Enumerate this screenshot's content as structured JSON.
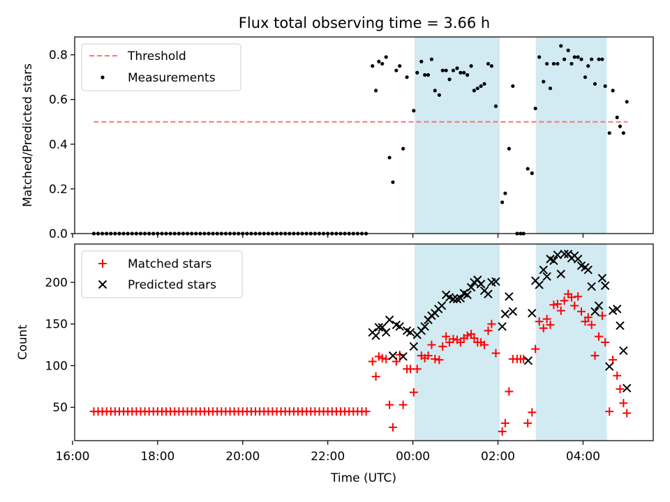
{
  "title": "Flux total observing time = 3.66 h",
  "colors": {
    "threshold": "#ff7070",
    "measurements": "#000000",
    "matched": "#ff0000",
    "predicted": "#000000",
    "shade": "#add8e6"
  },
  "chart_data": [
    {
      "type": "scatter",
      "ylabel": "Matched/Predicted stars",
      "xlim": [
        -7.95,
        5.65
      ],
      "ylim": [
        0,
        0.88
      ],
      "yticks": [
        0.0,
        0.2,
        0.4,
        0.6,
        0.8
      ],
      "ytick_labels": [
        "0.0",
        "0.2",
        "0.4",
        "0.6",
        "0.8"
      ],
      "shaded_x": [
        [
          0.04,
          2.04
        ],
        [
          2.89,
          4.56
        ]
      ],
      "legend": {
        "position": "top-left",
        "entries": [
          "Threshold",
          "Measurements"
        ]
      },
      "threshold": {
        "name": "Threshold",
        "value": 0.5,
        "x": [
          -7.5,
          5.05
        ]
      },
      "series": [
        {
          "name": "Measurements",
          "marker": "dot",
          "zeros_range": [
            -7.5,
            -1.05,
            0.1
          ],
          "points": [
            [
              -0.95,
              0.75
            ],
            [
              -0.87,
              0.64
            ],
            [
              -0.8,
              0.77
            ],
            [
              -0.72,
              0.76
            ],
            [
              -0.63,
              0.79
            ],
            [
              -0.55,
              0.34
            ],
            [
              -0.47,
              0.23
            ],
            [
              -0.39,
              0.73
            ],
            [
              -0.31,
              0.75
            ],
            [
              -0.23,
              0.38
            ],
            [
              -0.14,
              0.7
            ],
            [
              0.02,
              0.55
            ],
            [
              0.1,
              0.72
            ],
            [
              0.2,
              0.77
            ],
            [
              0.28,
              0.71
            ],
            [
              0.36,
              0.71
            ],
            [
              0.44,
              0.78
            ],
            [
              0.52,
              0.64
            ],
            [
              0.62,
              0.62
            ],
            [
              0.7,
              0.73
            ],
            [
              0.78,
              0.73
            ],
            [
              0.86,
              0.69
            ],
            [
              0.95,
              0.73
            ],
            [
              1.04,
              0.74
            ],
            [
              1.12,
              0.72
            ],
            [
              1.2,
              0.72
            ],
            [
              1.28,
              0.71
            ],
            [
              1.37,
              0.75
            ],
            [
              1.44,
              0.64
            ],
            [
              1.52,
              0.65
            ],
            [
              1.6,
              0.66
            ],
            [
              1.68,
              0.67
            ],
            [
              1.77,
              0.76
            ],
            [
              1.85,
              0.75
            ],
            [
              1.95,
              0.57
            ],
            [
              2.1,
              0.14
            ],
            [
              2.17,
              0.18
            ],
            [
              2.26,
              0.38
            ],
            [
              2.35,
              0.66
            ],
            [
              2.45,
              0.0
            ],
            [
              2.53,
              0.0
            ],
            [
              2.6,
              0.0
            ],
            [
              2.7,
              0.29
            ],
            [
              2.8,
              0.27
            ],
            [
              2.88,
              0.56
            ],
            [
              2.97,
              0.79
            ],
            [
              3.07,
              0.68
            ],
            [
              3.15,
              0.76
            ],
            [
              3.23,
              0.65
            ],
            [
              3.31,
              0.76
            ],
            [
              3.4,
              0.76
            ],
            [
              3.48,
              0.84
            ],
            [
              3.56,
              0.78
            ],
            [
              3.65,
              0.82
            ],
            [
              3.73,
              0.76
            ],
            [
              3.8,
              0.79
            ],
            [
              3.88,
              0.79
            ],
            [
              3.96,
              0.78
            ],
            [
              4.05,
              0.7
            ],
            [
              4.12,
              0.75
            ],
            [
              4.2,
              0.78
            ],
            [
              4.28,
              0.67
            ],
            [
              4.37,
              0.78
            ],
            [
              4.45,
              0.78
            ],
            [
              4.52,
              0.66
            ],
            [
              4.62,
              0.45
            ],
            [
              4.7,
              0.64
            ],
            [
              4.8,
              0.52
            ],
            [
              4.87,
              0.48
            ],
            [
              4.95,
              0.45
            ],
            [
              5.03,
              0.59
            ]
          ]
        }
      ]
    },
    {
      "type": "scatter",
      "xlabel": "Time (UTC)",
      "ylabel": "Count",
      "xlim": [
        -7.95,
        5.65
      ],
      "ylim": [
        10,
        246
      ],
      "xticks": [
        -8,
        -6,
        -4,
        -2,
        0,
        2,
        4
      ],
      "xtick_labels": [
        "16:00",
        "18:00",
        "20:00",
        "22:00",
        "00:00",
        "02:00",
        "04:00"
      ],
      "yticks": [
        50,
        100,
        150,
        200
      ],
      "ytick_labels": [
        "50",
        "100",
        "150",
        "200"
      ],
      "shaded_x": [
        [
          0.04,
          2.04
        ],
        [
          2.89,
          4.56
        ]
      ],
      "legend": {
        "position": "top-left",
        "entries": [
          "Matched stars",
          "Predicted stars"
        ]
      },
      "series": [
        {
          "name": "Matched stars",
          "marker": "plus",
          "constant_range": [
            -7.5,
            -1.05,
            0.1,
            45
          ],
          "points": [
            [
              -0.95,
              105
            ],
            [
              -0.87,
              87
            ],
            [
              -0.8,
              111
            ],
            [
              -0.72,
              109
            ],
            [
              -0.63,
              108
            ],
            [
              -0.55,
              53
            ],
            [
              -0.47,
              26
            ],
            [
              -0.39,
              105
            ],
            [
              -0.31,
              113
            ],
            [
              -0.23,
              53
            ],
            [
              -0.14,
              96
            ],
            [
              -0.06,
              96
            ],
            [
              0.02,
              68
            ],
            [
              0.1,
              96
            ],
            [
              0.2,
              112
            ],
            [
              0.28,
              109
            ],
            [
              0.36,
              112
            ],
            [
              0.44,
              125
            ],
            [
              0.52,
              108
            ],
            [
              0.62,
              107
            ],
            [
              0.7,
              123
            ],
            [
              0.78,
              135
            ],
            [
              0.86,
              128
            ],
            [
              0.95,
              132
            ],
            [
              1.04,
              131
            ],
            [
              1.12,
              128
            ],
            [
              1.2,
              133
            ],
            [
              1.28,
              136
            ],
            [
              1.37,
              138
            ],
            [
              1.44,
              133
            ],
            [
              1.52,
              128
            ],
            [
              1.6,
              128
            ],
            [
              1.68,
              125
            ],
            [
              1.77,
              142
            ],
            [
              1.85,
              150
            ],
            [
              1.95,
              115
            ],
            [
              2.1,
              21
            ],
            [
              2.17,
              31
            ],
            [
              2.26,
              69
            ],
            [
              2.35,
              108
            ],
            [
              2.45,
              108
            ],
            [
              2.53,
              108
            ],
            [
              2.6,
              108
            ],
            [
              2.7,
              31
            ],
            [
              2.8,
              44
            ],
            [
              2.88,
              120
            ],
            [
              2.97,
              153
            ],
            [
              3.07,
              145
            ],
            [
              3.15,
              156
            ],
            [
              3.23,
              149
            ],
            [
              3.31,
              173
            ],
            [
              3.4,
              174
            ],
            [
              3.48,
              166
            ],
            [
              3.56,
              178
            ],
            [
              3.65,
              186
            ],
            [
              3.73,
              182
            ],
            [
              3.8,
              172
            ],
            [
              3.88,
              183
            ],
            [
              3.96,
              165
            ],
            [
              4.05,
              153
            ],
            [
              4.12,
              158
            ],
            [
              4.2,
              149
            ],
            [
              4.28,
              112
            ],
            [
              4.37,
              135
            ],
            [
              4.45,
              160
            ],
            [
              4.52,
              128
            ],
            [
              4.62,
              45
            ],
            [
              4.7,
              107
            ],
            [
              4.8,
              88
            ],
            [
              4.87,
              72
            ],
            [
              4.95,
              55
            ],
            [
              5.03,
              43
            ]
          ]
        },
        {
          "name": "Predicted stars",
          "marker": "x",
          "points": [
            [
              -0.95,
              140
            ],
            [
              -0.87,
              136
            ],
            [
              -0.8,
              146
            ],
            [
              -0.72,
              146
            ],
            [
              -0.63,
              140
            ],
            [
              -0.55,
              155
            ],
            [
              -0.47,
              112
            ],
            [
              -0.39,
              149
            ],
            [
              -0.31,
              147
            ],
            [
              -0.23,
              111
            ],
            [
              -0.14,
              142
            ],
            [
              -0.06,
              140
            ],
            [
              0.02,
              123
            ],
            [
              0.1,
              137
            ],
            [
              0.2,
              142
            ],
            [
              0.28,
              147
            ],
            [
              0.36,
              155
            ],
            [
              0.44,
              160
            ],
            [
              0.52,
              163
            ],
            [
              0.6,
              168
            ],
            [
              0.68,
              172
            ],
            [
              0.78,
              185
            ],
            [
              0.86,
              182
            ],
            [
              0.95,
              180
            ],
            [
              1.04,
              180
            ],
            [
              1.12,
              181
            ],
            [
              1.2,
              187
            ],
            [
              1.28,
              185
            ],
            [
              1.37,
              194
            ],
            [
              1.44,
              200
            ],
            [
              1.52,
              203
            ],
            [
              1.6,
              198
            ],
            [
              1.68,
              190
            ],
            [
              1.77,
              186
            ],
            [
              1.85,
              200
            ],
            [
              1.95,
              201
            ],
            [
              2.1,
              147
            ],
            [
              2.17,
              162
            ],
            [
              2.26,
              183
            ],
            [
              2.35,
              165
            ],
            [
              2.71,
              106
            ],
            [
              2.8,
              163
            ],
            [
              2.88,
              202
            ],
            [
              2.97,
              197
            ],
            [
              3.07,
              215
            ],
            [
              3.15,
              207
            ],
            [
              3.23,
              228
            ],
            [
              3.31,
              226
            ],
            [
              3.4,
              233
            ],
            [
              3.48,
              210
            ],
            [
              3.56,
              234
            ],
            [
              3.65,
              234
            ],
            [
              3.73,
              229
            ],
            [
              3.8,
              232
            ],
            [
              3.88,
              228
            ],
            [
              3.96,
              220
            ],
            [
              4.05,
              218
            ],
            [
              4.12,
              215
            ],
            [
              4.2,
              195
            ],
            [
              4.28,
              165
            ],
            [
              4.37,
              172
            ],
            [
              4.45,
              205
            ],
            [
              4.52,
              196
            ],
            [
              4.62,
              99
            ],
            [
              4.7,
              166
            ],
            [
              4.8,
              168
            ],
            [
              4.87,
              148
            ],
            [
              4.95,
              118
            ],
            [
              5.03,
              73
            ]
          ]
        }
      ]
    }
  ]
}
